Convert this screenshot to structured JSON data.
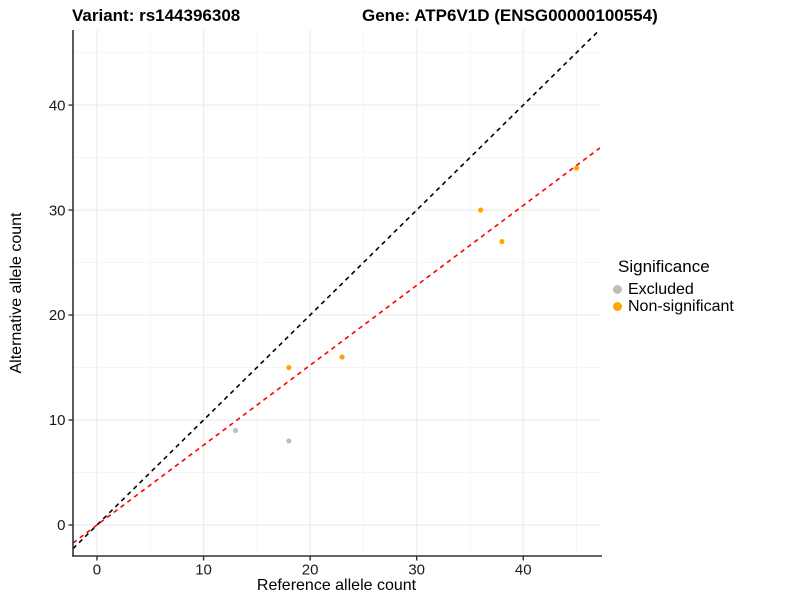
{
  "titles": {
    "variant": "Variant: rs144396308",
    "gene": "Gene: ATP6V1D (ENSG00000100554)"
  },
  "chart_data": {
    "type": "scatter",
    "xlabel": "Reference allele count",
    "ylabel": "Alternative allele count",
    "xlim": [
      -2.25,
      47.2
    ],
    "ylim": [
      -2.95,
      47.15
    ],
    "x_ticks": [
      0,
      10,
      20,
      30,
      40
    ],
    "y_ticks": [
      0,
      10,
      20,
      30,
      40
    ],
    "x_minor": [
      5,
      15,
      25,
      35,
      45
    ],
    "y_minor": [
      5,
      15,
      25,
      35,
      45
    ],
    "grid": {
      "major_color": "#EBEBEB",
      "minor_color": "#F5F5F5"
    },
    "axis_color": "#333333",
    "tick_label_color": "#1A1A1A",
    "series": [
      {
        "name": "Excluded",
        "color": "#BEBEBE",
        "points": [
          [
            13,
            9
          ],
          [
            18,
            8
          ]
        ]
      },
      {
        "name": "Non-significant",
        "color": "#FFA500",
        "points": [
          [
            18,
            15
          ],
          [
            23,
            16
          ],
          [
            36,
            30
          ],
          [
            38,
            27
          ],
          [
            45,
            34
          ]
        ]
      }
    ],
    "lines": [
      {
        "name": "identity-line",
        "color": "#000000",
        "slope": 1,
        "intercept": 0,
        "dash": "4.5 4"
      },
      {
        "name": "regression-line",
        "color": "#FF0000",
        "slope": 0.761,
        "intercept": 0,
        "dash": "4.5 4"
      }
    ]
  },
  "legend": {
    "title": "Significance",
    "items": [
      {
        "label": "Excluded",
        "color": "#BEBEBE"
      },
      {
        "label": "Non-significant",
        "color": "#FFA500"
      }
    ]
  }
}
